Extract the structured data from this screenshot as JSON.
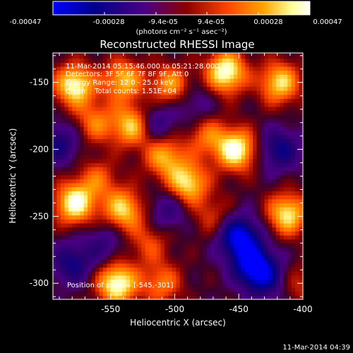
{
  "chart_data": {
    "type": "heatmap",
    "title": "Reconstructed RHESSI Image",
    "xlabel": "Heliocentric X (arcsec)",
    "ylabel": "Heliocentric Y (arcsec)",
    "xlim": [
      -595,
      -400
    ],
    "ylim": [
      -312,
      -128
    ],
    "xticks": [
      -550,
      -500,
      -450,
      -400
    ],
    "yticks": [
      -300,
      -250,
      -200,
      -150
    ],
    "colorbar": {
      "range": [
        -0.00047,
        0.00047
      ],
      "tick_values": [
        -0.00047,
        -0.00028,
        -9.4e-05,
        9.4e-05,
        0.00028,
        0.00047
      ],
      "tick_labels": [
        "-0.00047",
        "-0.00028",
        "-9.4e-05",
        "9.4e-05",
        "0.00028",
        "0.00047"
      ],
      "unit_label": "(photons cm⁻² s⁻¹ asec⁻²)",
      "colors": [
        "#0000ff",
        "#00008b",
        "#4b0082",
        "#8b0000",
        "#ff4500",
        "#ffa500",
        "#ffff99",
        "#ffffff"
      ]
    },
    "annotations": [
      "11-Mar-2014 05:15:46.000 to 05:21:28.000",
      "Detectors: 3F 5F 6F 7F 8F 9F, Att 0",
      "Energy Range: 12.0 - 25.0 keV",
      "Clean    Total counts: 1.51E+04"
    ],
    "peak": {
      "label": "Position of peak = [-545,-301]",
      "x": -545,
      "y": -301
    },
    "sources": [
      {
        "x": -578,
        "y": -152,
        "amp": 0.00044
      },
      {
        "x": -540,
        "y": -148,
        "amp": 0.00034
      },
      {
        "x": -503,
        "y": -152,
        "amp": 0.0003
      },
      {
        "x": -460,
        "y": -142,
        "amp": 0.00047
      },
      {
        "x": -418,
        "y": -150,
        "amp": 0.00038
      },
      {
        "x": -562,
        "y": -180,
        "amp": 0.00024
      },
      {
        "x": -533,
        "y": -182,
        "amp": 0.00038
      },
      {
        "x": -452,
        "y": -200,
        "amp": 0.00046
      },
      {
        "x": -475,
        "y": -190,
        "amp": 0.00022
      },
      {
        "x": -508,
        "y": -205,
        "amp": 0.00032
      },
      {
        "x": -560,
        "y": -222,
        "amp": 0.0002
      },
      {
        "x": -578,
        "y": -240,
        "amp": 0.00045
      },
      {
        "x": -540,
        "y": -245,
        "amp": 0.00037
      },
      {
        "x": -490,
        "y": -225,
        "amp": 0.0004
      },
      {
        "x": -520,
        "y": -270,
        "amp": 0.00018
      },
      {
        "x": -470,
        "y": -250,
        "amp": 0.00016
      },
      {
        "x": -412,
        "y": -248,
        "amp": 0.0004
      },
      {
        "x": -545,
        "y": -300,
        "amp": 0.00047
      },
      {
        "x": -510,
        "y": -300,
        "amp": 0.00024
      },
      {
        "x": -402,
        "y": -300,
        "amp": 0.00014
      },
      {
        "x": -450,
        "y": -265,
        "amp": -0.00046
      },
      {
        "x": -440,
        "y": -285,
        "amp": -0.00038
      },
      {
        "x": -430,
        "y": -295,
        "amp": -0.0003
      },
      {
        "x": -515,
        "y": -180,
        "amp": -0.00022
      },
      {
        "x": -590,
        "y": -195,
        "amp": -0.00024
      },
      {
        "x": -580,
        "y": -285,
        "amp": -0.00026
      },
      {
        "x": -505,
        "y": -245,
        "amp": -0.00018
      },
      {
        "x": -418,
        "y": -200,
        "amp": -0.00028
      },
      {
        "x": -555,
        "y": -270,
        "amp": -0.00016
      },
      {
        "x": -485,
        "y": -165,
        "amp": -0.00014
      }
    ]
  },
  "footer": {
    "timestamp": "11-Mar-2014 04:39"
  }
}
